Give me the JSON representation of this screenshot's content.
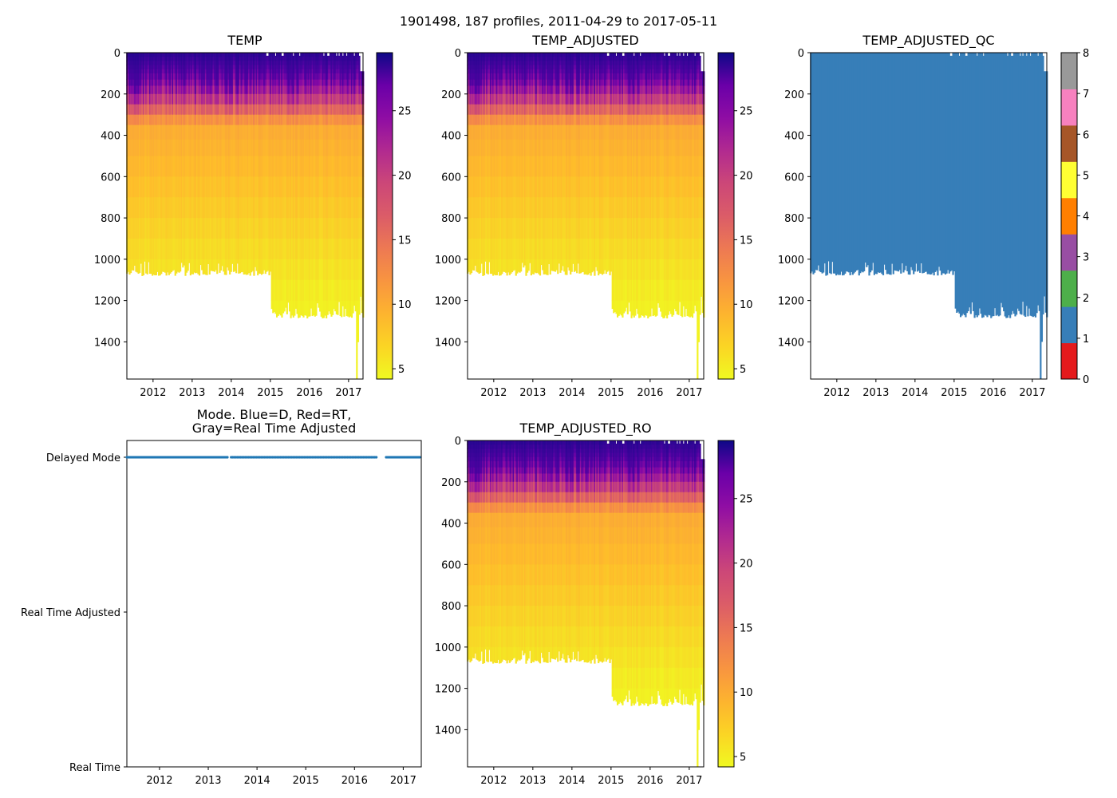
{
  "figure": {
    "suptitle": "1901498, 187 profiles, 2011-04-29 to 2017-05-11"
  },
  "chart_data": [
    {
      "id": "temp",
      "type": "heatmap",
      "title": "TEMP",
      "x_ticks": [
        "2012",
        "2013",
        "2014",
        "2015",
        "2016",
        "2017"
      ],
      "x_range": [
        2011.33,
        2017.37
      ],
      "y_ticks": [
        "0",
        "200",
        "400",
        "600",
        "800",
        "1000",
        "1200",
        "1400"
      ],
      "y_range": [
        0,
        1580
      ],
      "y_inverted": true,
      "colorbar_ticks": [
        "5",
        "10",
        "15",
        "20",
        "25"
      ],
      "colorbar_range": [
        4.2,
        29.5
      ],
      "colormap": "plasma_r",
      "mixed_layer_depth_m": [
        50,
        180
      ],
      "thermocline_base_m": 350,
      "surface_temp": 28,
      "deep_temp": 5,
      "max_depth_2011_2014_m": 1050,
      "max_depth_2015_2017_m": 1250
    },
    {
      "id": "temp_adjusted",
      "type": "heatmap",
      "title": "TEMP_ADJUSTED",
      "x_ticks": [
        "2012",
        "2013",
        "2014",
        "2015",
        "2016",
        "2017"
      ],
      "x_range": [
        2011.33,
        2017.37
      ],
      "y_ticks": [
        "0",
        "200",
        "400",
        "600",
        "800",
        "1000",
        "1200",
        "1400"
      ],
      "y_range": [
        0,
        1580
      ],
      "y_inverted": true,
      "colorbar_ticks": [
        "5",
        "10",
        "15",
        "20",
        "25"
      ],
      "colorbar_range": [
        4.2,
        29.5
      ],
      "colormap": "plasma_r"
    },
    {
      "id": "temp_adjusted_qc",
      "type": "heatmap",
      "title": "TEMP_ADJUSTED_QC",
      "x_ticks": [
        "2012",
        "2013",
        "2014",
        "2015",
        "2016",
        "2017"
      ],
      "x_range": [
        2011.33,
        2017.37
      ],
      "y_ticks": [
        "0",
        "200",
        "400",
        "600",
        "800",
        "1000",
        "1200",
        "1400"
      ],
      "y_range": [
        0,
        1580
      ],
      "y_inverted": true,
      "qc_value_everywhere": 1,
      "colorbar_ticks": [
        "0",
        "1",
        "2",
        "3",
        "4",
        "5",
        "6",
        "7",
        "8"
      ],
      "qc_colors": [
        "#e41a1c",
        "#377eb8",
        "#4daf4a",
        "#984ea3",
        "#ff7f00",
        "#ffff33",
        "#a65628",
        "#f781bf",
        "#999999"
      ]
    },
    {
      "id": "mode",
      "type": "scatter",
      "title_line1": "Mode. Blue=D, Red=RT,",
      "title_line2": "Gray=Real Time Adjusted",
      "x_ticks": [
        "2012",
        "2013",
        "2014",
        "2015",
        "2016",
        "2017"
      ],
      "x_range": [
        2011.33,
        2017.37
      ],
      "y_categories": [
        "Real Time",
        "Real Time Adjusted",
        "Delayed Mode"
      ],
      "series": [
        {
          "name": "Delayed Mode",
          "color": "#1f77b4",
          "y": "Delayed Mode",
          "segments": [
            [
              2011.33,
              2013.42
            ],
            [
              2013.47,
              2016.45
            ],
            [
              2016.65,
              2017.37
            ]
          ]
        }
      ]
    },
    {
      "id": "temp_adjusted_ro",
      "type": "heatmap",
      "title": "TEMP_ADJUSTED_RO",
      "x_ticks": [
        "2012",
        "2013",
        "2014",
        "2015",
        "2016",
        "2017"
      ],
      "x_range": [
        2011.33,
        2017.37
      ],
      "y_ticks": [
        "0",
        "200",
        "400",
        "600",
        "800",
        "1000",
        "1200",
        "1400"
      ],
      "y_range": [
        0,
        1580
      ],
      "y_inverted": true,
      "colorbar_ticks": [
        "5",
        "10",
        "15",
        "20",
        "25"
      ],
      "colorbar_range": [
        4.2,
        29.5
      ],
      "colormap": "plasma_r"
    }
  ]
}
